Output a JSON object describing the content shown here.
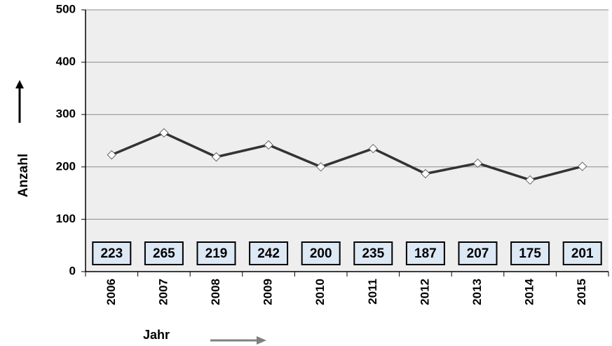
{
  "chart_data": {
    "type": "line",
    "y_label": "Anzahl",
    "x_label": "Jahr",
    "categories": [
      "2006",
      "2007",
      "2008",
      "2009",
      "2010",
      "2011",
      "2012",
      "2013",
      "2014",
      "2015"
    ],
    "values": [
      223,
      265,
      219,
      242,
      200,
      235,
      187,
      207,
      175,
      201
    ],
    "color": "#333333",
    "ylim": [
      0,
      500
    ],
    "yticks": [
      0,
      100,
      200,
      300,
      400,
      500
    ],
    "grid": true
  }
}
